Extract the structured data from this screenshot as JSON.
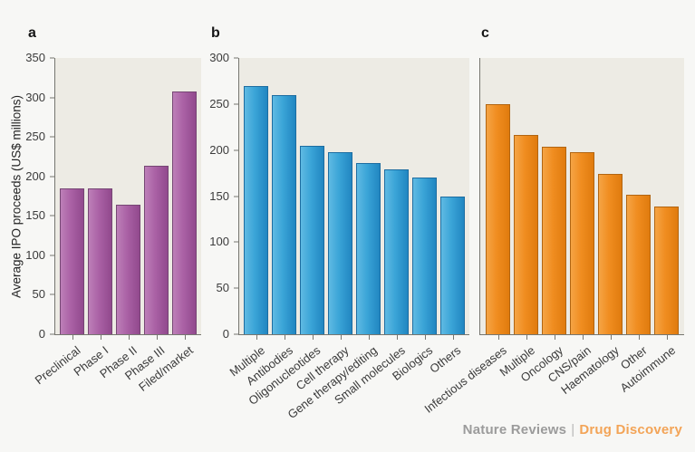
{
  "page": {
    "background": "#f7f7f5",
    "plot_background": "#edebe4",
    "axis_color": "#767670"
  },
  "footer": {
    "journal": "Nature Reviews",
    "separator": "|",
    "magazine": "Drug Discovery",
    "journal_color": "#9b9b9b",
    "separator_color": "#b8b8b8",
    "magazine_color": "#f3a457"
  },
  "chart_data": [
    {
      "type": "bar",
      "panel_label": "a",
      "title": "",
      "xlabel": "",
      "ylabel": "Average IPO proceeds (US$ millions)",
      "categories": [
        "Preclinical",
        "Phase I",
        "Phase II",
        "Phase III",
        "Filed/market"
      ],
      "values": [
        185,
        185,
        164,
        213,
        308
      ],
      "ylim": [
        0,
        350
      ],
      "ytick_step": 50,
      "show_ytick_labels": true,
      "grid": false,
      "legend": "none",
      "bar_gradient": [
        "#bd7fb8",
        "#aa61a5",
        "#91498d"
      ],
      "bar_border": "#764674"
    },
    {
      "type": "bar",
      "panel_label": "b",
      "title": "",
      "xlabel": "",
      "ylabel": "",
      "categories": [
        "Multiple",
        "Antibodies",
        "Oligonucleotides",
        "Cell therapy",
        "Gene therapy/editing",
        "Small molecules",
        "Biologics",
        "Others"
      ],
      "values": [
        270,
        260,
        205,
        198,
        186,
        179,
        170,
        150
      ],
      "ylim": [
        0,
        300
      ],
      "ytick_step": 50,
      "show_ytick_labels": true,
      "grid": false,
      "legend": "none",
      "bar_gradient": [
        "#5fbae3",
        "#3aa4d7",
        "#2186c1"
      ],
      "bar_border": "#1d6da1"
    },
    {
      "type": "bar",
      "panel_label": "c",
      "title": "",
      "xlabel": "",
      "ylabel": "",
      "categories": [
        "Infectious diseases",
        "Multiple",
        "Oncology",
        "CNS/pain",
        "Haematology",
        "Other",
        "Autoimmune"
      ],
      "values": [
        250,
        216,
        204,
        198,
        174,
        151,
        139
      ],
      "ylim": [
        0,
        300
      ],
      "ytick_step": 50,
      "show_ytick_labels": false,
      "grid": false,
      "legend": "none",
      "bar_gradient": [
        "#f5a445",
        "#f08d20",
        "#e07b0e"
      ],
      "bar_border": "#b26511"
    }
  ]
}
